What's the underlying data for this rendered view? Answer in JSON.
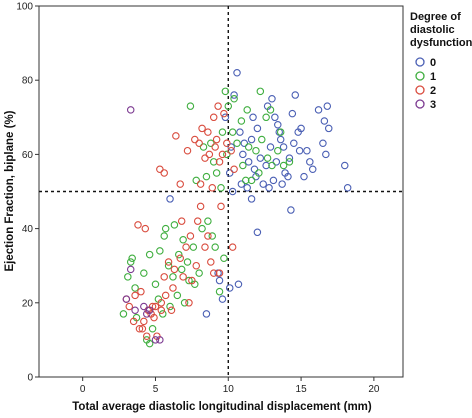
{
  "chart_data": {
    "type": "scatter",
    "title": "",
    "xlabel": "Total average diastolic longitudinal displacement (mm)",
    "ylabel": "Ejection Fraction, biplane (%)",
    "xlim": [
      -3,
      22
    ],
    "ylim": [
      0,
      100
    ],
    "x_ticks": [
      0,
      5,
      10,
      15,
      20
    ],
    "y_ticks": [
      0,
      20,
      40,
      60,
      80,
      100
    ],
    "reference_lines": {
      "x": 10,
      "y": 50,
      "style": "dashed"
    },
    "grid": false,
    "legend": {
      "title_lines": [
        "Degree of",
        "diastolic",
        "dysfunction"
      ],
      "position": "right"
    },
    "series": [
      {
        "name": "0",
        "color": "#4a5fb4",
        "points": [
          [
            10.6,
            82
          ],
          [
            10.4,
            76
          ],
          [
            9.8,
            70
          ],
          [
            10.2,
            62
          ],
          [
            10.8,
            66
          ],
          [
            11.0,
            60
          ],
          [
            10.1,
            55
          ],
          [
            10.9,
            52
          ],
          [
            11.4,
            58
          ],
          [
            11.1,
            63
          ],
          [
            11.6,
            64
          ],
          [
            12.0,
            67
          ],
          [
            11.8,
            56
          ],
          [
            12.2,
            59
          ],
          [
            12.6,
            57
          ],
          [
            12.4,
            52
          ],
          [
            12.9,
            62
          ],
          [
            13.0,
            75
          ],
          [
            13.2,
            70
          ],
          [
            13.5,
            66
          ],
          [
            13.8,
            62
          ],
          [
            13.3,
            58
          ],
          [
            13.1,
            53
          ],
          [
            13.9,
            55
          ],
          [
            14.2,
            59
          ],
          [
            14.4,
            71
          ],
          [
            14.6,
            76
          ],
          [
            14.8,
            66
          ],
          [
            14.5,
            63
          ],
          [
            15.0,
            67
          ],
          [
            15.4,
            61
          ],
          [
            15.6,
            58
          ],
          [
            15.2,
            54
          ],
          [
            14.1,
            54
          ],
          [
            13.7,
            52
          ],
          [
            12.8,
            51
          ],
          [
            14.3,
            45
          ],
          [
            16.2,
            72
          ],
          [
            16.6,
            69
          ],
          [
            16.8,
            73
          ],
          [
            16.9,
            67
          ],
          [
            16.5,
            63
          ],
          [
            16.7,
            60
          ],
          [
            18.0,
            57
          ],
          [
            18.2,
            51
          ],
          [
            12.0,
            39
          ],
          [
            6.0,
            48
          ],
          [
            8.5,
            17
          ],
          [
            9.3,
            28
          ],
          [
            9.4,
            26
          ],
          [
            10.1,
            24
          ],
          [
            9.6,
            21
          ],
          [
            10.7,
            25
          ],
          [
            11.9,
            54
          ],
          [
            11.3,
            51
          ],
          [
            12.7,
            73
          ],
          [
            13.6,
            64
          ],
          [
            15.8,
            56
          ],
          [
            14.9,
            61
          ],
          [
            11.6,
            48
          ],
          [
            10.3,
            50
          ],
          [
            13.4,
            68
          ],
          [
            11.7,
            70
          ]
        ]
      },
      {
        "name": "1",
        "color": "#3fae3f",
        "points": [
          [
            9.8,
            77
          ],
          [
            10.4,
            75
          ],
          [
            12.2,
            77
          ],
          [
            11.3,
            72
          ],
          [
            7.4,
            73
          ],
          [
            8.8,
            63
          ],
          [
            9.6,
            66
          ],
          [
            9.9,
            60
          ],
          [
            10.3,
            66
          ],
          [
            10.6,
            63
          ],
          [
            11.0,
            57
          ],
          [
            11.4,
            62
          ],
          [
            11.9,
            61
          ],
          [
            12.3,
            64
          ],
          [
            12.7,
            59
          ],
          [
            12.1,
            55
          ],
          [
            11.6,
            53
          ],
          [
            13.0,
            57
          ],
          [
            13.4,
            61
          ],
          [
            13.8,
            57
          ],
          [
            13.6,
            66
          ],
          [
            11.2,
            53
          ],
          [
            10.9,
            69
          ],
          [
            12.6,
            70
          ],
          [
            8.3,
            62
          ],
          [
            9.0,
            58
          ],
          [
            8.5,
            54
          ],
          [
            9.2,
            55
          ],
          [
            9.5,
            51
          ],
          [
            7.8,
            53
          ],
          [
            3.3,
            31
          ],
          [
            3.1,
            27
          ],
          [
            4.2,
            28
          ],
          [
            3.6,
            24
          ],
          [
            4.6,
            33
          ],
          [
            5.3,
            34
          ],
          [
            5.6,
            38
          ],
          [
            5.0,
            25
          ],
          [
            5.9,
            30
          ],
          [
            6.2,
            27
          ],
          [
            6.6,
            33
          ],
          [
            6.9,
            37
          ],
          [
            7.2,
            31
          ],
          [
            7.6,
            35
          ],
          [
            8.0,
            28
          ],
          [
            8.2,
            40
          ],
          [
            8.6,
            42
          ],
          [
            9.1,
            35
          ],
          [
            9.4,
            23
          ],
          [
            9.7,
            32
          ],
          [
            7.3,
            26
          ],
          [
            6.5,
            22
          ],
          [
            7.0,
            20
          ],
          [
            6.0,
            19
          ],
          [
            5.5,
            17
          ],
          [
            5.2,
            21
          ],
          [
            4.8,
            13
          ],
          [
            4.4,
            10
          ],
          [
            4.6,
            9
          ],
          [
            3.7,
            16
          ],
          [
            2.8,
            17
          ],
          [
            6.8,
            29
          ],
          [
            7.7,
            25
          ],
          [
            8.9,
            38
          ],
          [
            6.3,
            41
          ],
          [
            5.7,
            40
          ],
          [
            3.4,
            32
          ],
          [
            14.2,
            58
          ],
          [
            10.0,
            73
          ],
          [
            12.9,
            72
          ]
        ]
      },
      {
        "name": "2",
        "color": "#d94c3e",
        "points": [
          [
            9.3,
            73
          ],
          [
            9.0,
            70
          ],
          [
            9.7,
            71
          ],
          [
            5.3,
            56
          ],
          [
            5.6,
            55
          ],
          [
            7.2,
            61
          ],
          [
            8.0,
            63
          ],
          [
            8.4,
            59
          ],
          [
            8.7,
            60
          ],
          [
            9.1,
            62
          ],
          [
            9.4,
            58
          ],
          [
            9.6,
            60
          ],
          [
            9.9,
            63
          ],
          [
            10.2,
            61
          ],
          [
            8.6,
            66
          ],
          [
            8.2,
            67
          ],
          [
            9.2,
            64
          ],
          [
            7.7,
            64
          ],
          [
            10.4,
            56
          ],
          [
            6.7,
            52
          ],
          [
            8.1,
            52
          ],
          [
            8.9,
            51
          ],
          [
            6.4,
            65
          ],
          [
            3.8,
            41
          ],
          [
            4.3,
            40
          ],
          [
            6.8,
            42
          ],
          [
            7.4,
            38
          ],
          [
            7.9,
            42
          ],
          [
            8.1,
            46
          ],
          [
            8.4,
            35
          ],
          [
            8.8,
            31
          ],
          [
            9.0,
            28
          ],
          [
            9.4,
            28
          ],
          [
            7.1,
            35
          ],
          [
            6.7,
            32
          ],
          [
            6.9,
            27
          ],
          [
            6.2,
            24
          ],
          [
            5.7,
            22
          ],
          [
            5.4,
            18
          ],
          [
            4.9,
            16
          ],
          [
            4.7,
            17
          ],
          [
            4.2,
            15
          ],
          [
            3.9,
            13
          ],
          [
            3.5,
            15
          ],
          [
            3.2,
            19
          ],
          [
            3.0,
            21
          ],
          [
            3.6,
            22
          ],
          [
            4.0,
            23
          ],
          [
            4.5,
            18
          ],
          [
            4.8,
            19
          ],
          [
            5.0,
            19
          ],
          [
            5.4,
            20
          ],
          [
            5.6,
            27
          ],
          [
            5.9,
            31
          ],
          [
            6.3,
            29
          ],
          [
            7.3,
            20
          ],
          [
            7.8,
            30
          ],
          [
            8.6,
            38
          ],
          [
            5.1,
            11
          ],
          [
            4.4,
            11
          ],
          [
            4.1,
            13
          ],
          [
            6.1,
            18
          ],
          [
            7.5,
            26
          ],
          [
            9.5,
            46
          ],
          [
            10.3,
            35
          ]
        ]
      },
      {
        "name": "3",
        "color": "#7c3a91",
        "points": [
          [
            3.3,
            72
          ],
          [
            3.3,
            29
          ],
          [
            4.2,
            19
          ],
          [
            4.6,
            18
          ],
          [
            3.6,
            18
          ],
          [
            3.0,
            21
          ],
          [
            4.4,
            17
          ],
          [
            5.0,
            10
          ],
          [
            5.3,
            10
          ]
        ]
      }
    ]
  }
}
